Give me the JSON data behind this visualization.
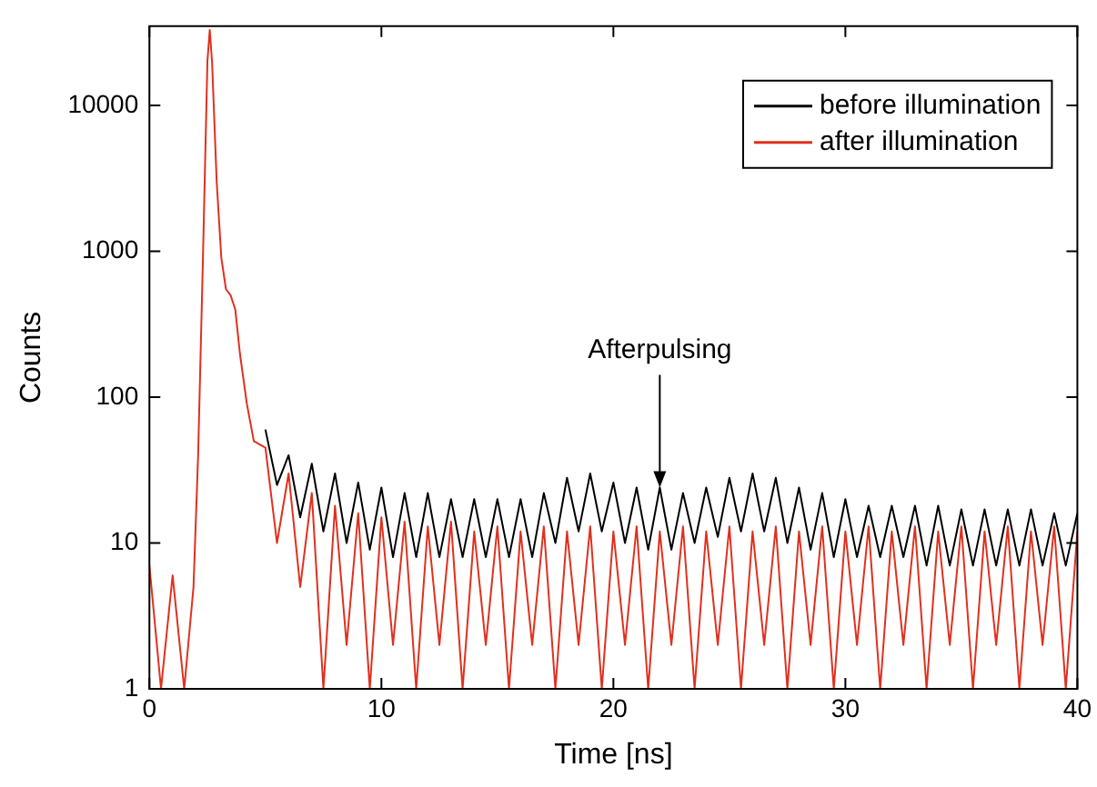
{
  "chart_data": {
    "type": "line",
    "xlabel": "Time [ns]",
    "ylabel": "Counts",
    "log": "y",
    "grid": false,
    "legend": "top right",
    "marker": "none",
    "line_style": "solid",
    "xlim": [
      0,
      40
    ],
    "xticks": [
      0,
      10,
      20,
      30,
      40
    ],
    "ylim": [
      1,
      35000
    ],
    "yticks": [
      1,
      10,
      100,
      1000,
      10000
    ],
    "series": [
      {
        "name": "before illumination",
        "color": "#000000",
        "x": [
          5,
          5.5,
          6,
          6.5,
          7,
          7.5,
          8,
          8.5,
          9,
          9.5,
          10,
          10.5,
          11,
          11.5,
          12,
          12.5,
          13,
          13.5,
          14,
          14.5,
          15,
          15.5,
          16,
          16.5,
          17,
          17.5,
          18,
          18.5,
          19,
          19.5,
          20,
          20.5,
          21,
          21.5,
          22,
          22.5,
          23,
          23.5,
          24,
          24.5,
          25,
          25.5,
          26,
          26.5,
          27,
          27.5,
          28,
          28.5,
          29,
          29.5,
          30,
          30.5,
          31,
          31.5,
          32,
          32.5,
          33,
          33.5,
          34,
          34.5,
          35,
          35.5,
          36,
          36.5,
          37,
          37.5,
          38,
          38.5,
          39,
          39.5,
          40
        ],
        "values": [
          60,
          25,
          40,
          15,
          35,
          12,
          30,
          10,
          26,
          9,
          24,
          8,
          22,
          8,
          22,
          8,
          20,
          8,
          20,
          8,
          20,
          8,
          20,
          8,
          22,
          10,
          28,
          12,
          30,
          12,
          26,
          10,
          24,
          9,
          24,
          9,
          22,
          10,
          24,
          11,
          28,
          12,
          30,
          12,
          28,
          10,
          24,
          9,
          22,
          8,
          20,
          8,
          18,
          8,
          18,
          8,
          18,
          7,
          18,
          7,
          17,
          7,
          17,
          7,
          17,
          7,
          17,
          7,
          16,
          7,
          16
        ]
      },
      {
        "name": "after illumination",
        "color": "#e0301e",
        "x": [
          0,
          0.5,
          1,
          1.5,
          1.9,
          2.1,
          2.3,
          2.5,
          2.6,
          2.7,
          2.9,
          3.1,
          3.3,
          3.5,
          3.7,
          3.9,
          4.2,
          4.5,
          5,
          5.5,
          6,
          6.5,
          7,
          7.5,
          8,
          8.5,
          9,
          9.5,
          10,
          10.5,
          11,
          11.5,
          12,
          12.5,
          13,
          13.5,
          14,
          14.5,
          15,
          15.5,
          16,
          16.5,
          17,
          17.5,
          18,
          18.5,
          19,
          19.5,
          20,
          20.5,
          21,
          21.5,
          22,
          22.5,
          23,
          23.5,
          24,
          24.5,
          25,
          25.5,
          26,
          26.5,
          27,
          27.5,
          28,
          28.5,
          29,
          29.5,
          30,
          30.5,
          31,
          31.5,
          32,
          32.5,
          33,
          33.5,
          34,
          34.5,
          35,
          35.5,
          36,
          36.5,
          37,
          37.5,
          38,
          38.5,
          39,
          39.5,
          40
        ],
        "values": [
          7,
          1,
          6,
          1,
          5,
          40,
          800,
          20000,
          33000,
          20000,
          3000,
          900,
          550,
          500,
          400,
          200,
          90,
          50,
          45,
          10,
          30,
          5,
          22,
          1,
          18,
          2,
          16,
          1,
          15,
          2,
          14,
          1,
          13,
          2,
          14,
          1,
          12,
          2,
          13,
          1,
          12,
          2,
          13,
          1,
          12,
          2,
          13,
          1,
          12,
          2,
          13,
          1,
          12,
          2,
          13,
          1,
          12,
          2,
          13,
          1,
          12,
          2,
          13,
          1,
          12,
          2,
          13,
          1,
          12,
          2,
          13,
          1,
          12,
          2,
          13,
          1,
          12,
          2,
          13,
          1,
          12,
          2,
          13,
          1,
          12,
          2,
          13,
          1,
          12
        ]
      }
    ],
    "annotations": [
      {
        "text": "Afterpulsing",
        "x": 22,
        "y": 24
      }
    ]
  }
}
